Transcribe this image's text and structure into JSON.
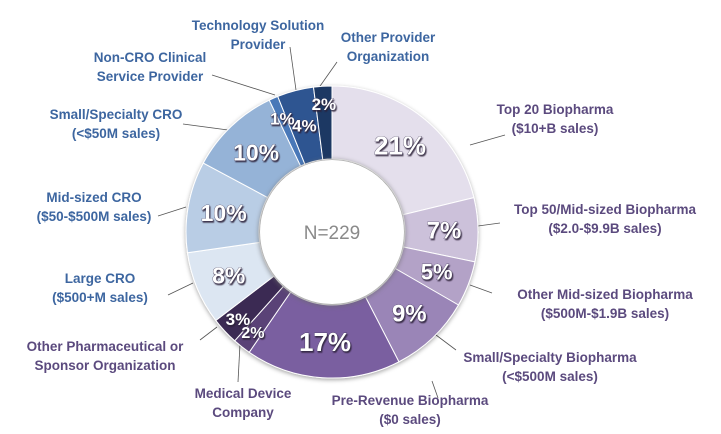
{
  "chart_data": {
    "type": "pie",
    "variant": "donut",
    "title": "",
    "center_label": "N=229",
    "unit": "%",
    "slices": [
      {
        "label": [
          "Top 20 Biopharma",
          "($10+B sales)"
        ],
        "value": 21,
        "display": "21%",
        "color": "#e4dfec",
        "label_color": "#5b4a7e",
        "group": "biopharma"
      },
      {
        "label": [
          "Top 50/Mid-sized Biopharma",
          "($2.0-$9.9B sales)"
        ],
        "value": 7,
        "display": "7%",
        "color": "#ccc1da",
        "label_color": "#5b4a7e",
        "group": "biopharma"
      },
      {
        "label": [
          "Other Mid-sized Biopharma",
          "($500M-$1.9B sales)"
        ],
        "value": 5,
        "display": "5%",
        "color": "#b3a2c7",
        "label_color": "#5b4a7e",
        "group": "biopharma"
      },
      {
        "label": [
          "Small/Specialty Biopharma",
          "(<$500M sales)"
        ],
        "value": 9,
        "display": "9%",
        "color": "#9a85b7",
        "label_color": "#5b4a7e",
        "group": "biopharma"
      },
      {
        "label": [
          "Pre-Revenue Biopharma",
          "($0 sales)"
        ],
        "value": 17,
        "display": "17%",
        "color": "#7a5fa0",
        "label_color": "#5b4a7e",
        "group": "biopharma"
      },
      {
        "label": [
          "Medical Device",
          "Company"
        ],
        "value": 2,
        "display": "2%",
        "color": "#5a4277",
        "label_color": "#5b4a7e",
        "group": "sponsor"
      },
      {
        "label": [
          "Other Pharmaceutical or",
          "Sponsor Organization"
        ],
        "value": 3,
        "display": "3%",
        "color": "#3b2b52",
        "label_color": "#5b4a7e",
        "group": "sponsor"
      },
      {
        "label": [
          "Large CRO",
          "($500+M sales)"
        ],
        "value": 8,
        "display": "8%",
        "color": "#dce6f2",
        "label_color": "#3d66a0",
        "group": "provider"
      },
      {
        "label": [
          "Mid-sized CRO",
          "($50-$500M sales)"
        ],
        "value": 10,
        "display": "10%",
        "color": "#b9cde5",
        "label_color": "#3d66a0",
        "group": "provider"
      },
      {
        "label": [
          "Small/Specialty CRO",
          "(<$50M sales)"
        ],
        "value": 10,
        "display": "10%",
        "color": "#95b3d7",
        "label_color": "#3d66a0",
        "group": "provider"
      },
      {
        "label": [
          "Non-CRO Clinical",
          "Service Provider"
        ],
        "value": 1,
        "display": "1%",
        "color": "#4a78b8",
        "label_color": "#3d66a0",
        "group": "provider"
      },
      {
        "label": [
          "Technology Solution",
          "Provider"
        ],
        "value": 4,
        "display": "4%",
        "color": "#2f5591",
        "label_color": "#3d66a0",
        "group": "provider"
      },
      {
        "label": [
          "Other Provider",
          "Organization"
        ],
        "value": 2,
        "display": "2%",
        "color": "#1f3864",
        "label_color": "#3d66a0",
        "group": "provider"
      }
    ],
    "start_angle": "12 o'clock",
    "direction": "clockwise",
    "legend": "none (callout labels)"
  }
}
